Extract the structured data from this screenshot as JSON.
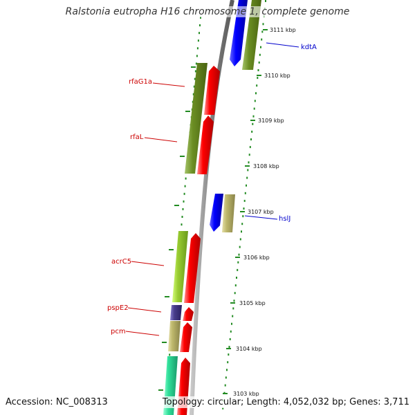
{
  "title": "Ralstonia eutropha H16 chromosome 1, complete genome",
  "footer": {
    "accession": "Accession: NC_008313",
    "summary": "Topology: circular; Length: 4,052,032 bp; Genes: 3,711"
  },
  "ruler": {
    "unit": "kbp",
    "labels": [
      "3111 kbp",
      "3110 kbp",
      "3109 kbp",
      "3108 kbp",
      "3107 kbp",
      "3106 kbp",
      "3105 kbp",
      "3104 kbp",
      "3103 kbp"
    ]
  },
  "genes": [
    {
      "name": "kdtA",
      "color": "#0000cc"
    },
    {
      "name": "rfaG1a",
      "color": "#cc0000"
    },
    {
      "name": "rfaL",
      "color": "#cc0000"
    },
    {
      "name": "hslJ",
      "color": "#0000cc"
    },
    {
      "name": "acrC5",
      "color": "#cc0000"
    },
    {
      "name": "pspE2",
      "color": "#cc0000"
    },
    {
      "name": "pcm",
      "color": "#cc0000"
    }
  ],
  "colors": {
    "backbone": "#808080",
    "tick": "#228b22",
    "forward_cds": "#ff0000",
    "reverse_cds": "#0000ff",
    "olive_feature": "#6b8e23",
    "khaki_feature": "#bdb76b",
    "lime_feature": "#9acd32",
    "slate_feature": "#483d8b",
    "aqua_feature": "#40e0a0"
  }
}
